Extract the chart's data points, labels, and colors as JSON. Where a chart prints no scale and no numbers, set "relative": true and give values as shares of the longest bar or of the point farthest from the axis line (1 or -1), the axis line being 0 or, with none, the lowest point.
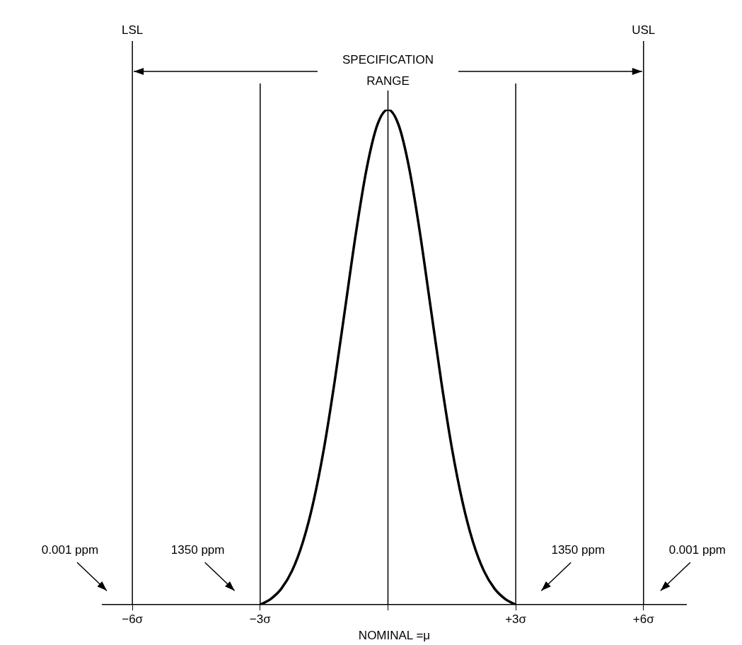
{
  "chart_data": {
    "type": "line",
    "relative": true,
    "x": [
      -3,
      -2.75,
      -2.5,
      -2.25,
      -2,
      -1.75,
      -1.5,
      -1.25,
      -1,
      -0.75,
      -0.5,
      -0.25,
      0,
      0.25,
      0.5,
      0.75,
      1,
      1.25,
      1.5,
      1.75,
      2,
      2.25,
      2.5,
      2.75,
      3
    ],
    "series": [
      {
        "color": "#000000",
        "values": [
          0,
          0.012,
          0.033,
          0.069,
          0.126,
          0.208,
          0.317,
          0.452,
          0.602,
          0.752,
          0.881,
          0.969,
          1,
          0.969,
          0.881,
          0.752,
          0.602,
          0.452,
          0.317,
          0.208,
          0.126,
          0.069,
          0.033,
          0.012,
          0
        ]
      }
    ],
    "xlim": [
      -6.7,
      7
    ],
    "xticks": [
      {
        "value": -6,
        "label": "−6σ"
      },
      {
        "value": -3,
        "label": "−3σ"
      },
      {
        "value": 0,
        "label": null
      },
      {
        "value": 3,
        "label": "+3σ"
      },
      {
        "value": 6,
        "label": "+6σ"
      }
    ],
    "xlabel": "NOMINAL =μ",
    "ref_lines": [
      {
        "axis": "x",
        "value": -6,
        "label": "LSL",
        "color": "#000000"
      },
      {
        "axis": "x",
        "value": -3,
        "label": null,
        "color": "#000000"
      },
      {
        "axis": "x",
        "value": 0,
        "label": null,
        "color": "#000000"
      },
      {
        "axis": "x",
        "value": 3,
        "label": null,
        "color": "#000000"
      },
      {
        "axis": "x",
        "value": 6,
        "label": "USL",
        "color": "#000000"
      }
    ],
    "annotations": [
      "SPECIFICATION RANGE",
      "0.001 ppm",
      "1350 ppm",
      "1350 ppm",
      "0.001 ppm"
    ],
    "grid": false,
    "legend": false,
    "marker": "none",
    "line_style": "solid",
    "tick_labels": "x"
  }
}
